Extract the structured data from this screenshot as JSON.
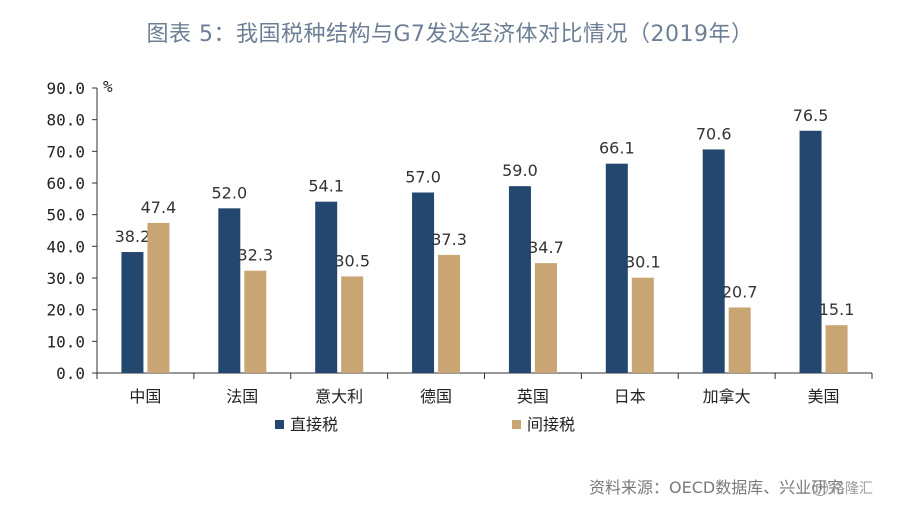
{
  "title": "图表 5：我国税种结构与G7发达经济体对比情况（2019年）",
  "source": "资料来源：OECD数据库、兴业研究",
  "watermark": "格隆汇",
  "colors": {
    "direct": "#23476f",
    "indirect": "#c9a574"
  },
  "chart_data": {
    "type": "bar",
    "unit": "%",
    "categories": [
      "中国",
      "法国",
      "意大利",
      "德国",
      "英国",
      "日本",
      "加拿大",
      "美国"
    ],
    "series": [
      {
        "name": "直接税",
        "values": [
          38.2,
          52.0,
          54.1,
          57.0,
          59.0,
          66.1,
          70.6,
          76.5
        ]
      },
      {
        "name": "间接税",
        "values": [
          47.4,
          32.3,
          30.5,
          37.3,
          34.7,
          30.1,
          20.7,
          15.1
        ]
      }
    ],
    "ylim": [
      0,
      90
    ],
    "yticks": [
      "90.0",
      "80.0",
      "70.0",
      "60.0",
      "50.0",
      "40.0",
      "30.0",
      "20.0",
      "10.0",
      "0.0"
    ],
    "legend": "bottom"
  }
}
